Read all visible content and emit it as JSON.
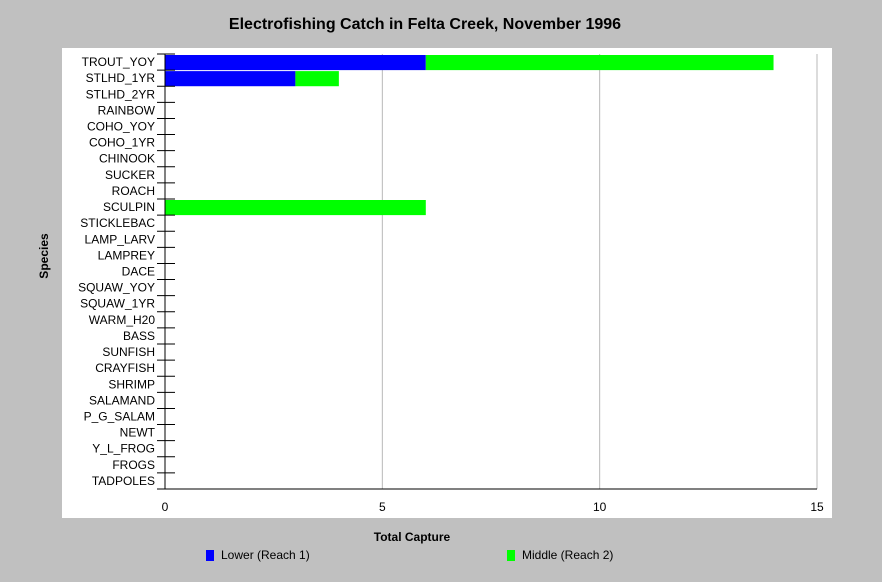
{
  "chart_data": {
    "type": "bar",
    "orientation": "horizontal",
    "stacked": true,
    "title": "Electrofishing Catch in Felta Creek, November 1996",
    "xlabel": "Total Capture",
    "ylabel": "Species",
    "xlim": [
      0,
      15
    ],
    "xticks": [
      "0",
      "5",
      "10",
      "15"
    ],
    "grid": true,
    "legend_position": "bottom",
    "categories": [
      "TROUT_YOY",
      "STLHD_1YR",
      "STLHD_2YR",
      "RAINBOW",
      "COHO_YOY",
      "COHO_1YR",
      "CHINOOK",
      "SUCKER",
      "ROACH",
      "SCULPIN",
      "STICKLEBAC",
      "LAMP_LARV",
      "LAMPREY",
      "DACE",
      "SQUAW_YOY",
      "SQUAW_1YR",
      "WARM_H20",
      "BASS",
      "SUNFISH",
      "CRAYFISH",
      "SHRIMP",
      "SALAMAND",
      "P_G_SALAM",
      "NEWT",
      "Y_L_FROG",
      "FROGS",
      "TADPOLES"
    ],
    "series": [
      {
        "name": "Lower (Reach 1)",
        "color": "#0000ff",
        "values": [
          6,
          3,
          0,
          0,
          0,
          0,
          0,
          0,
          0,
          0,
          0,
          0,
          0,
          0,
          0,
          0,
          0,
          0,
          0,
          0,
          0,
          0,
          0,
          0,
          0,
          0,
          0
        ]
      },
      {
        "name": "Middle (Reach 2)",
        "color": "#00ff00",
        "values": [
          8,
          1,
          0,
          0,
          0,
          0,
          0,
          0,
          0,
          6,
          0,
          0,
          0,
          0,
          0,
          0,
          0,
          0,
          0,
          0,
          0,
          0,
          0,
          0,
          0,
          0,
          0
        ]
      }
    ]
  }
}
